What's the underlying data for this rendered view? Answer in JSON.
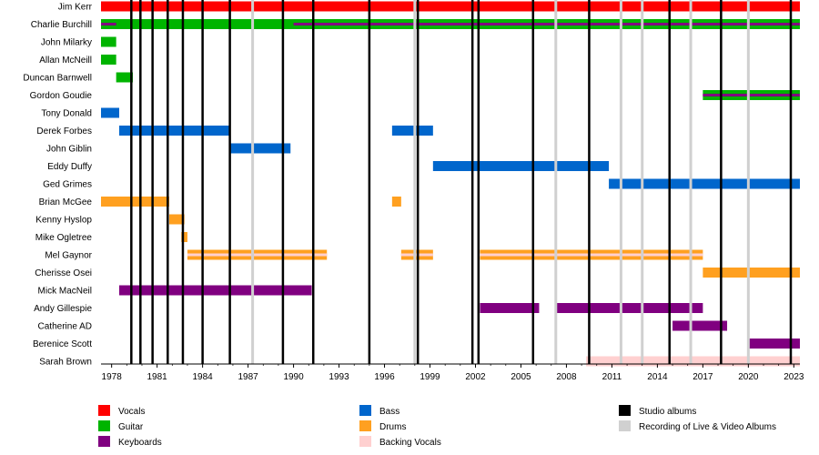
{
  "chart_data": {
    "type": "timeline",
    "title": "",
    "xlabel": "",
    "ylabel": "",
    "xlim": [
      1977.3,
      2023.4
    ],
    "grid": true,
    "legend_position": "bottom",
    "members": [
      "Jim Kerr",
      "Charlie Burchill",
      "John Milarky",
      "Allan McNeill",
      "Duncan Barnwell",
      "Gordon Goudie",
      "Tony Donald",
      "Derek Forbes",
      "John Giblin",
      "Eddy Duffy",
      "Ged Grimes",
      "Brian McGee",
      "Kenny Hyslop",
      "Mike Ogletree",
      "Mel Gaynor",
      "Cherisse Osei",
      "Mick MacNeil",
      "Andy Gillespie",
      "Catherine AD",
      "Berenice Scott",
      "Sarah Brown"
    ],
    "ticks": [
      1978,
      1981,
      1984,
      1987,
      1990,
      1993,
      1996,
      1999,
      2002,
      2005,
      2008,
      2011,
      2014,
      2017,
      2020,
      2023
    ],
    "roles": [
      {
        "key": "vocals",
        "name": "Vocals",
        "color": "#ff0000",
        "style": "solid"
      },
      {
        "key": "guitar",
        "name": "Guitar",
        "color": "#00b400",
        "style": "solid"
      },
      {
        "key": "keyboards",
        "name": "Keyboards",
        "color": "#800080",
        "style": "solid"
      },
      {
        "key": "bass",
        "name": "Bass",
        "color": "#0066cc",
        "style": "solid"
      },
      {
        "key": "drums",
        "name": "Drums",
        "color": "#ffa020",
        "style": "solid"
      },
      {
        "key": "backing",
        "name": "Backing Vocals",
        "color": "#ffd0d0",
        "style": "solid"
      },
      {
        "key": "studio",
        "name": "Studio albums",
        "color": "#000000",
        "style": "line"
      },
      {
        "key": "live",
        "name": "Recording of Live & Video Albums",
        "color": "#d0d0d0",
        "style": "line"
      }
    ],
    "bars": [
      {
        "member": "Jim Kerr",
        "role": "vocals",
        "start": 1977.3,
        "end": 2023.4
      },
      {
        "member": "Charlie Burchill",
        "role": "guitar",
        "start": 1977.3,
        "end": 2023.4
      },
      {
        "member": "Charlie Burchill",
        "role": "keyboards",
        "start": 1977.3,
        "end": 1978.3,
        "inner": true
      },
      {
        "member": "Charlie Burchill",
        "role": "keyboards",
        "start": 1990.0,
        "end": 2023.4,
        "inner": true
      },
      {
        "member": "John Milarky",
        "role": "guitar",
        "start": 1977.3,
        "end": 1978.3
      },
      {
        "member": "Allan McNeill",
        "role": "guitar",
        "start": 1977.3,
        "end": 1978.3
      },
      {
        "member": "Duncan Barnwell",
        "role": "guitar",
        "start": 1978.3,
        "end": 1979.4
      },
      {
        "member": "Gordon Goudie",
        "role": "guitar",
        "start": 2017.0,
        "end": 2023.4
      },
      {
        "member": "Gordon Goudie",
        "role": "keyboards",
        "start": 2017.0,
        "end": 2023.4,
        "inner": true
      },
      {
        "member": "Tony Donald",
        "role": "bass",
        "start": 1977.3,
        "end": 1978.5
      },
      {
        "member": "Derek Forbes",
        "role": "bass",
        "start": 1978.5,
        "end": 1985.8
      },
      {
        "member": "Derek Forbes",
        "role": "bass",
        "start": 1996.5,
        "end": 1999.2
      },
      {
        "member": "John Giblin",
        "role": "bass",
        "start": 1985.8,
        "end": 1989.8
      },
      {
        "member": "Eddy Duffy",
        "role": "bass",
        "start": 1999.2,
        "end": 2010.8
      },
      {
        "member": "Ged Grimes",
        "role": "bass",
        "start": 2010.8,
        "end": 2023.4
      },
      {
        "member": "Brian McGee",
        "role": "drums",
        "start": 1977.3,
        "end": 1981.8
      },
      {
        "member": "Brian McGee",
        "role": "drums",
        "start": 1996.5,
        "end": 1997.1
      },
      {
        "member": "Kenny Hyslop",
        "role": "drums",
        "start": 1981.8,
        "end": 1982.8
      },
      {
        "member": "Mike Ogletree",
        "role": "drums",
        "start": 1982.6,
        "end": 1983.0
      },
      {
        "member": "Mel Gaynor",
        "role": "drums",
        "start": 1983.0,
        "end": 1992.2
      },
      {
        "member": "Mel Gaynor",
        "role": "backing",
        "start": 1983.0,
        "end": 1992.2,
        "inner": true
      },
      {
        "member": "Mel Gaynor",
        "role": "drums",
        "start": 1997.1,
        "end": 1999.2
      },
      {
        "member": "Mel Gaynor",
        "role": "backing",
        "start": 1997.1,
        "end": 1999.2,
        "inner": true
      },
      {
        "member": "Mel Gaynor",
        "role": "drums",
        "start": 2002.3,
        "end": 2017.0
      },
      {
        "member": "Mel Gaynor",
        "role": "backing",
        "start": 2002.3,
        "end": 2017.0,
        "inner": true
      },
      {
        "member": "Cherisse Osei",
        "role": "drums",
        "start": 2017.0,
        "end": 2023.4
      },
      {
        "member": "Mick MacNeil",
        "role": "keyboards",
        "start": 1978.5,
        "end": 1991.2
      },
      {
        "member": "Andy Gillespie",
        "role": "keyboards",
        "start": 2002.3,
        "end": 2006.2
      },
      {
        "member": "Andy Gillespie",
        "role": "keyboards",
        "start": 2007.3,
        "end": 2017.0
      },
      {
        "member": "Catherine AD",
        "role": "keyboards",
        "start": 2015.0,
        "end": 2018.6
      },
      {
        "member": "Berenice Scott",
        "role": "keyboards",
        "start": 2020.0,
        "end": 2023.4
      },
      {
        "member": "Sarah Brown",
        "role": "backing",
        "start": 2009.3,
        "end": 2023.4
      }
    ],
    "studio_albums": [
      1979.3,
      1979.9,
      1980.7,
      1981.7,
      1982.7,
      1984.0,
      1985.8,
      1989.3,
      1991.3,
      1995.0,
      1998.2,
      2001.8,
      2002.2,
      2005.8,
      2009.5,
      2014.8,
      2018.2,
      2022.8
    ],
    "live_albums": [
      1987.3,
      1998.0,
      2007.3,
      2011.6,
      2013.0,
      2016.2,
      2020.0
    ]
  }
}
